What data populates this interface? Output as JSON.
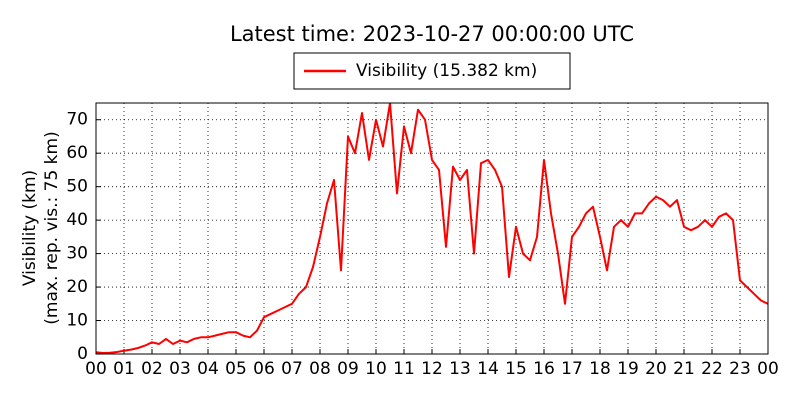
{
  "chart_data": {
    "type": "line",
    "title": "Latest time: 2023-10-27 00:00:00 UTC",
    "ylabel": [
      "Visibility (km)",
      "(max. rep. vis.: 75 km)"
    ],
    "x": [
      0,
      0.25,
      0.5,
      0.75,
      1,
      1.25,
      1.5,
      1.75,
      2,
      2.25,
      2.5,
      2.75,
      3,
      3.25,
      3.5,
      3.75,
      4,
      4.25,
      4.5,
      4.75,
      5,
      5.25,
      5.5,
      5.75,
      6,
      6.25,
      6.5,
      6.75,
      7,
      7.25,
      7.5,
      7.75,
      8,
      8.25,
      8.5,
      8.75,
      9,
      9.25,
      9.5,
      9.75,
      10,
      10.25,
      10.5,
      10.75,
      11,
      11.25,
      11.5,
      11.75,
      12,
      12.25,
      12.5,
      12.75,
      13,
      13.25,
      13.5,
      13.75,
      14,
      14.25,
      14.5,
      14.75,
      15,
      15.25,
      15.5,
      15.75,
      16,
      16.25,
      16.5,
      16.75,
      17,
      17.25,
      17.5,
      17.75,
      18,
      18.25,
      18.5,
      18.75,
      19,
      19.25,
      19.5,
      19.75,
      20,
      20.25,
      20.5,
      20.75,
      21,
      21.25,
      21.5,
      21.75,
      22,
      22.25,
      22.5,
      22.75,
      23,
      23.25,
      23.5,
      23.75,
      24
    ],
    "series": [
      {
        "name": "Visibility (15.382 km)",
        "color": "#ff0000",
        "values": [
          0.5,
          0.3,
          0.4,
          0.6,
          1,
          1.3,
          1.8,
          2.5,
          3.5,
          3,
          4.5,
          3,
          4,
          3.5,
          4.5,
          5,
          5,
          5.5,
          6,
          6.5,
          6.5,
          5.5,
          5,
          7,
          11,
          12,
          13,
          14,
          15,
          18,
          20,
          26,
          35,
          45,
          52,
          25,
          65,
          60,
          72,
          58,
          70,
          62,
          75,
          48,
          68,
          60,
          73,
          70,
          58,
          55,
          32,
          56,
          52,
          55,
          30,
          57,
          58,
          55,
          50,
          23,
          38,
          30,
          28,
          35,
          58,
          42,
          30,
          15,
          35,
          38,
          42,
          44,
          35,
          25,
          38,
          40,
          38,
          42,
          42,
          45,
          47,
          46,
          44,
          46,
          38,
          37,
          38,
          40,
          38,
          41,
          42,
          40,
          22,
          20,
          18,
          16,
          15
        ]
      }
    ],
    "xlim": [
      0,
      24
    ],
    "ylim": [
      0,
      75
    ],
    "xticks": [
      {
        "value": 0,
        "label": "00"
      },
      {
        "value": 1,
        "label": "01"
      },
      {
        "value": 2,
        "label": "02"
      },
      {
        "value": 3,
        "label": "03"
      },
      {
        "value": 4,
        "label": "04"
      },
      {
        "value": 5,
        "label": "05"
      },
      {
        "value": 6,
        "label": "06"
      },
      {
        "value": 7,
        "label": "07"
      },
      {
        "value": 8,
        "label": "08"
      },
      {
        "value": 9,
        "label": "09"
      },
      10,
      11,
      12,
      13,
      14,
      15,
      16,
      17,
      18,
      19,
      20,
      21,
      22,
      23,
      {
        "value": 24,
        "label": "00"
      }
    ],
    "yticks": [
      0,
      10,
      20,
      30,
      40,
      50,
      60,
      70
    ],
    "grid": true,
    "legend": "top"
  }
}
